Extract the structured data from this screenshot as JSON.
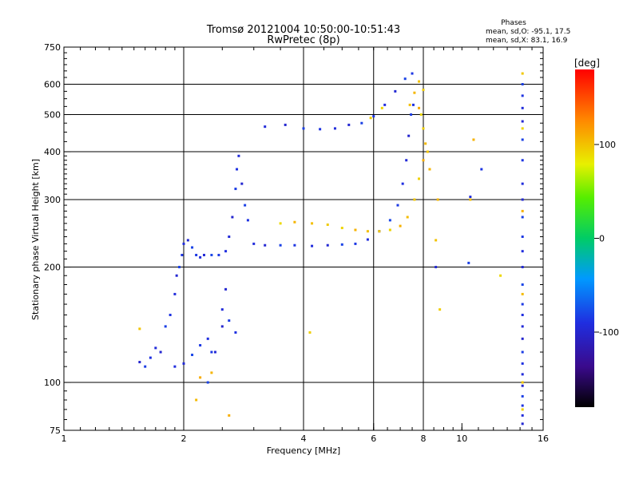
{
  "chart_data": {
    "type": "scatter",
    "title": "Tromsø 20121004 10:50:00-10:51:43",
    "subtitle": "RwPretec (8p)",
    "xlabel": "Frequency [MHz]",
    "ylabel": "Stationary phase Virtual Height [km]",
    "x_scale": "log",
    "y_scale": "log",
    "xlim": [
      1,
      16
    ],
    "ylim": [
      75,
      750
    ],
    "xticks": [
      1,
      2,
      4,
      6,
      8,
      10,
      16
    ],
    "yticks": [
      75,
      100,
      200,
      300,
      400,
      500,
      600,
      750
    ],
    "grid": true,
    "stats": {
      "heading": "Phases",
      "line_o": "mean, sd,O: -95.1, 17.5",
      "line_x": "mean, sd,X: 83.1, 16.9"
    },
    "colorbar": {
      "label": "[deg]",
      "range": [
        -180,
        180
      ],
      "ticks": [
        100,
        0,
        -100
      ],
      "colormap": "rainbow"
    },
    "series": [
      {
        "mode": "O",
        "phase_deg": -90,
        "points": [
          [
            1.55,
            113
          ],
          [
            1.6,
            110
          ],
          [
            1.65,
            116
          ],
          [
            1.7,
            123
          ],
          [
            1.75,
            120
          ],
          [
            1.8,
            140
          ],
          [
            1.85,
            150
          ],
          [
            1.9,
            170
          ],
          [
            1.92,
            190
          ],
          [
            1.95,
            200
          ],
          [
            1.98,
            215
          ],
          [
            2.0,
            230
          ],
          [
            2.05,
            235
          ],
          [
            2.1,
            225
          ],
          [
            2.15,
            215
          ],
          [
            2.2,
            212
          ],
          [
            2.25,
            215
          ],
          [
            2.35,
            215
          ],
          [
            2.45,
            215
          ],
          [
            2.55,
            220
          ],
          [
            2.6,
            240
          ],
          [
            2.65,
            270
          ],
          [
            2.7,
            320
          ],
          [
            2.72,
            360
          ],
          [
            2.75,
            390
          ],
          [
            2.8,
            330
          ],
          [
            2.85,
            290
          ],
          [
            2.9,
            265
          ],
          [
            3.0,
            230
          ],
          [
            3.2,
            228
          ],
          [
            3.5,
            228
          ],
          [
            3.8,
            228
          ],
          [
            4.2,
            227
          ],
          [
            4.6,
            228
          ],
          [
            5.0,
            229
          ],
          [
            5.4,
            230
          ],
          [
            5.8,
            236
          ],
          [
            6.2,
            248
          ],
          [
            6.6,
            265
          ],
          [
            6.9,
            290
          ],
          [
            7.1,
            330
          ],
          [
            7.25,
            380
          ],
          [
            7.35,
            440
          ],
          [
            7.45,
            500
          ],
          [
            7.55,
            530
          ],
          [
            3.2,
            465
          ],
          [
            3.6,
            470
          ],
          [
            4.0,
            460
          ],
          [
            4.4,
            458
          ],
          [
            4.8,
            460
          ],
          [
            5.2,
            470
          ],
          [
            5.6,
            475
          ],
          [
            6.0,
            495
          ],
          [
            6.4,
            530
          ],
          [
            6.8,
            575
          ],
          [
            7.2,
            620
          ],
          [
            7.5,
            640
          ],
          [
            1.9,
            110
          ],
          [
            2.0,
            112
          ],
          [
            2.1,
            118
          ],
          [
            2.2,
            125
          ],
          [
            2.3,
            130
          ],
          [
            2.4,
            120
          ],
          [
            2.5,
            140
          ],
          [
            2.6,
            145
          ],
          [
            2.7,
            135
          ],
          [
            2.5,
            155
          ],
          [
            2.55,
            175
          ],
          [
            14.2,
            600
          ],
          [
            14.2,
            560
          ],
          [
            14.2,
            520
          ],
          [
            14.2,
            480
          ],
          [
            14.2,
            430
          ],
          [
            14.2,
            380
          ],
          [
            14.2,
            330
          ],
          [
            14.2,
            300
          ],
          [
            14.2,
            270
          ],
          [
            14.2,
            240
          ],
          [
            14.2,
            220
          ],
          [
            14.2,
            200
          ],
          [
            14.2,
            180
          ],
          [
            14.2,
            160
          ],
          [
            14.2,
            150
          ],
          [
            14.2,
            140
          ],
          [
            14.2,
            130
          ],
          [
            14.2,
            120
          ],
          [
            14.2,
            112
          ],
          [
            14.2,
            105
          ],
          [
            14.2,
            98
          ],
          [
            14.2,
            92
          ],
          [
            14.2,
            87
          ],
          [
            14.2,
            82
          ],
          [
            14.2,
            78
          ],
          [
            10.4,
            205
          ],
          [
            11.2,
            360
          ],
          [
            10.5,
            305
          ],
          [
            8.6,
            200
          ],
          [
            2.3,
            100
          ],
          [
            2.35,
            120
          ]
        ]
      },
      {
        "mode": "X",
        "phase_deg": 100,
        "points": [
          [
            3.5,
            260
          ],
          [
            3.8,
            262
          ],
          [
            4.2,
            260
          ],
          [
            4.6,
            258
          ],
          [
            5.0,
            253
          ],
          [
            5.4,
            250
          ],
          [
            5.8,
            248
          ],
          [
            6.2,
            248
          ],
          [
            6.6,
            250
          ],
          [
            7.0,
            256
          ],
          [
            7.3,
            270
          ],
          [
            7.6,
            300
          ],
          [
            7.8,
            340
          ],
          [
            8.0,
            380
          ],
          [
            8.1,
            420
          ],
          [
            8.2,
            400
          ],
          [
            8.0,
            460
          ],
          [
            7.8,
            520
          ],
          [
            7.6,
            570
          ],
          [
            7.8,
            610
          ],
          [
            8.0,
            580
          ],
          [
            7.9,
            500
          ],
          [
            8.3,
            360
          ],
          [
            7.4,
            530
          ],
          [
            5.9,
            490
          ],
          [
            6.3,
            520
          ],
          [
            10.7,
            430
          ],
          [
            10.5,
            300
          ],
          [
            14.2,
            640
          ],
          [
            14.2,
            460
          ],
          [
            14.2,
            280
          ],
          [
            14.2,
            170
          ],
          [
            14.2,
            100
          ],
          [
            14.2,
            85
          ],
          [
            2.6,
            82
          ],
          [
            2.15,
            90
          ],
          [
            1.55,
            138
          ],
          [
            4.15,
            135
          ],
          [
            2.2,
            103
          ],
          [
            8.7,
            300
          ],
          [
            8.6,
            235
          ],
          [
            8.8,
            155
          ],
          [
            12.5,
            190
          ],
          [
            2.35,
            106
          ]
        ]
      }
    ]
  }
}
